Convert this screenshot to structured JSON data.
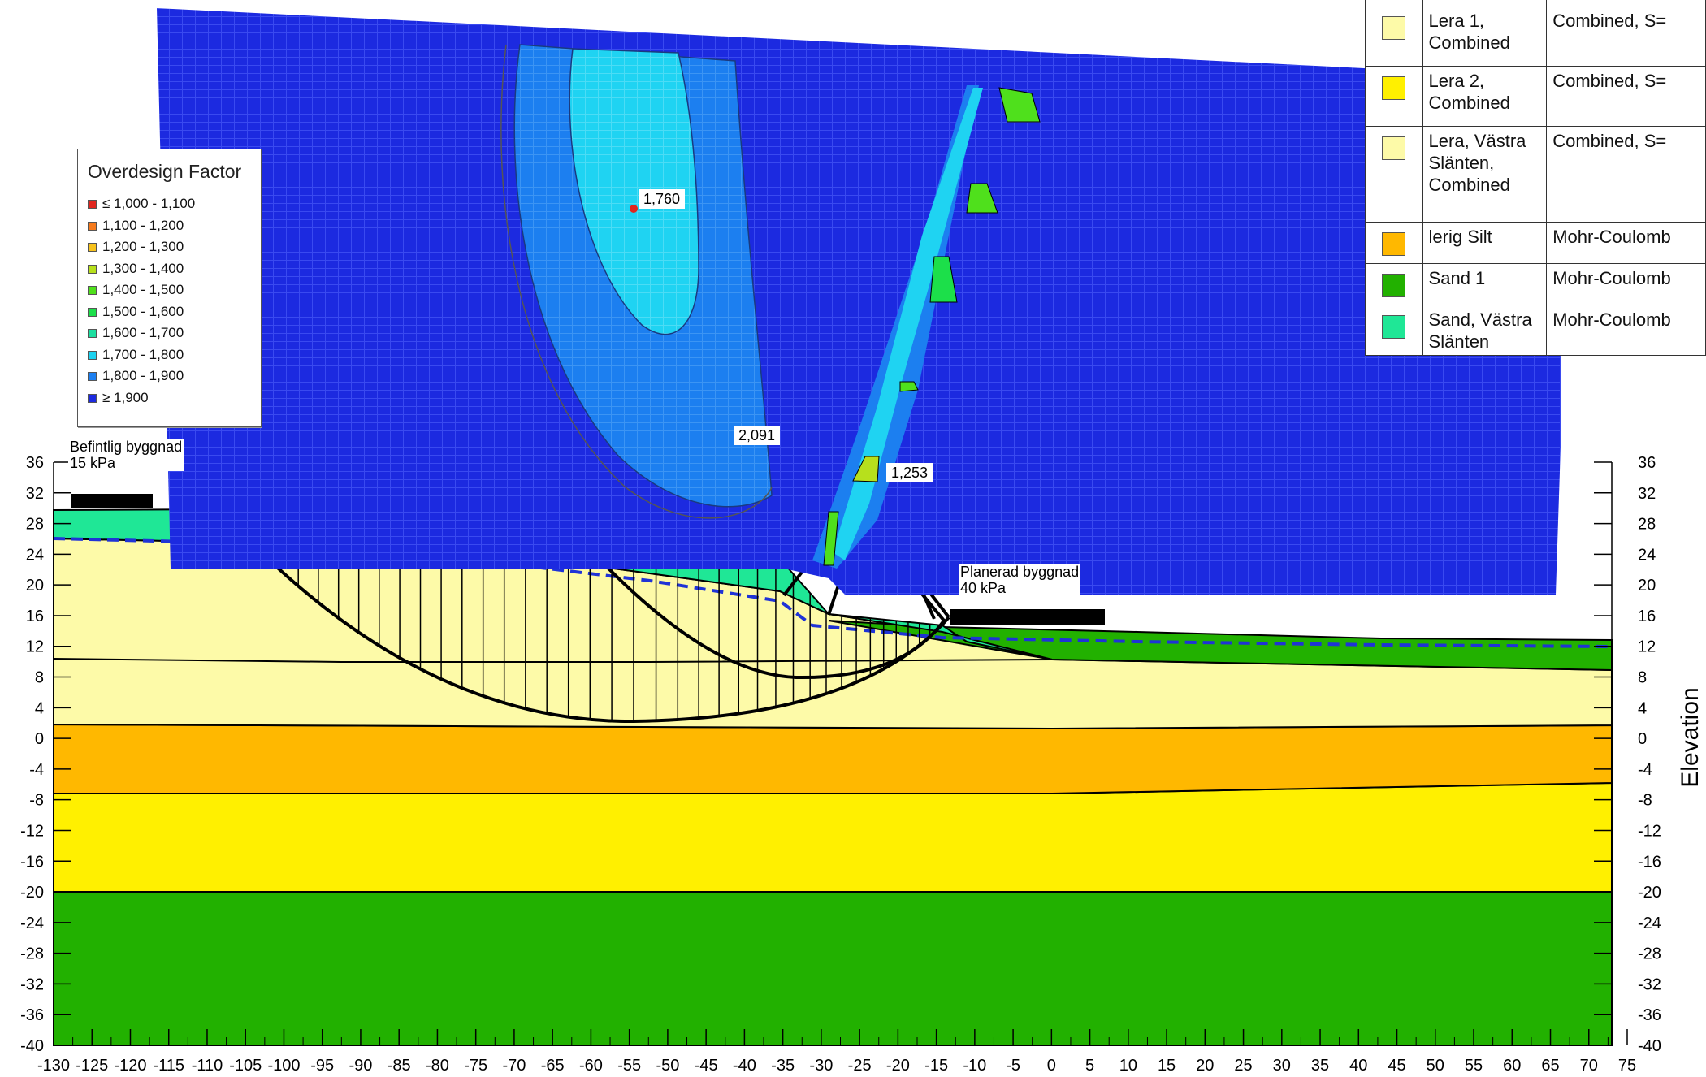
{
  "legend": {
    "title": "Overdesign Factor",
    "items": [
      {
        "label": "≤ 1,000 - 1,100",
        "color": "#e0261f"
      },
      {
        "label": "1,100 - 1,200",
        "color": "#f57a1c"
      },
      {
        "label": "1,200 - 1,300",
        "color": "#f7c21c"
      },
      {
        "label": "1,300 - 1,400",
        "color": "#b7e01c"
      },
      {
        "label": "1,400 - 1,500",
        "color": "#4fe01c"
      },
      {
        "label": "1,500 - 1,600",
        "color": "#1cdf4a"
      },
      {
        "label": "1,600 - 1,700",
        "color": "#1cdfa0"
      },
      {
        "label": "1,700 - 1,800",
        "color": "#1cd2f0"
      },
      {
        "label": "1,800 - 1,900",
        "color": "#1c7ff0"
      },
      {
        "label": "≥ 1,900",
        "color": "#1c2ae0"
      }
    ]
  },
  "materials": [
    {
      "name": "Lera 1, Combined",
      "model": "Combined, S=",
      "color": "#fdfaa8"
    },
    {
      "name": "Lera 2, Combined",
      "model": "Combined, S=",
      "color": "#fff000"
    },
    {
      "name": "Lera, Västra Slänten, Combined",
      "model": "Combined, S=",
      "color": "#fdfaa8"
    },
    {
      "name": "lerig Silt",
      "model": "Mohr-Coulomb",
      "color": "#ffb800"
    },
    {
      "name": "Sand 1",
      "model": "Mohr-Coulomb",
      "color": "#22b100"
    },
    {
      "name": "Sand, Västra Slänten",
      "model": "Mohr-Coulomb",
      "color": "#1fe796"
    }
  ],
  "factor_labels": [
    "1,760",
    "2,091",
    "1,253"
  ],
  "loads": [
    {
      "name": "Befintlig byggnad",
      "value": "15 kPa"
    },
    {
      "name": "Planerad byggnad",
      "value": "40 kPa"
    }
  ],
  "axes": {
    "x_ticks": [
      "-130",
      "-125",
      "-120",
      "-115",
      "-110",
      "-105",
      "-100",
      "-95",
      "-90",
      "-85",
      "-80",
      "-75",
      "-70",
      "-65",
      "-60",
      "-55",
      "-50",
      "-45",
      "-40",
      "-35",
      "-30",
      "-25",
      "-20",
      "-15",
      "-10",
      "-5",
      "0",
      "5",
      "10",
      "15",
      "20",
      "25",
      "30",
      "35",
      "40",
      "45",
      "50",
      "55",
      "60",
      "65",
      "70",
      "75"
    ],
    "y_ticks": [
      "36",
      "32",
      "28",
      "24",
      "20",
      "16",
      "12",
      "8",
      "4",
      "0",
      "-4",
      "-8",
      "-12",
      "-16",
      "-20",
      "-24",
      "-28",
      "-32",
      "-36",
      "-40"
    ],
    "ylabel": "Elevation"
  },
  "colors": {
    "grid_blue": "#1c2ae0",
    "grid_light": "#1fd3f2",
    "grid_mid": "#1c7ff0",
    "clay1": "#fdfaa8",
    "clay2": "#fff000",
    "silt": "#ffb800",
    "sand1": "#22b100",
    "sand_west": "#1fe796",
    "water": "#1f33d6"
  }
}
